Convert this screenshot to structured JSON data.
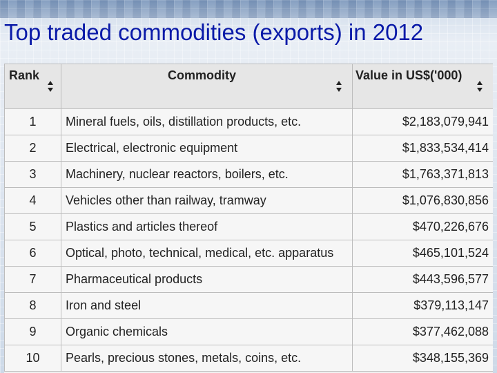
{
  "title": "Top traded commodities (exports) in 2012",
  "table": {
    "headers": {
      "rank": "Rank",
      "commodity": "Commodity",
      "value": "Value in US$('000)"
    },
    "rows": [
      {
        "rank": "1",
        "commodity": "Mineral fuels, oils, distillation products, etc.",
        "value": "$2,183,079,941"
      },
      {
        "rank": "2",
        "commodity": "Electrical, electronic equipment",
        "value": "$1,833,534,414"
      },
      {
        "rank": "3",
        "commodity": "Machinery, nuclear reactors, boilers, etc.",
        "value": "$1,763,371,813"
      },
      {
        "rank": "4",
        "commodity": "Vehicles other than railway, tramway",
        "value": "$1,076,830,856"
      },
      {
        "rank": "5",
        "commodity": "Plastics and articles thereof",
        "value": "$470,226,676"
      },
      {
        "rank": "6",
        "commodity": "Optical, photo, technical, medical, etc. apparatus",
        "value": "$465,101,524"
      },
      {
        "rank": "7",
        "commodity": "Pharmaceutical products",
        "value": "$443,596,577"
      },
      {
        "rank": "8",
        "commodity": "Iron and steel",
        "value": "$379,113,147"
      },
      {
        "rank": "9",
        "commodity": "Organic chemicals",
        "value": "$377,462,088"
      },
      {
        "rank": "10",
        "commodity": "Pearls, precious stones, metals, coins, etc.",
        "value": "$348,155,369"
      }
    ]
  }
}
